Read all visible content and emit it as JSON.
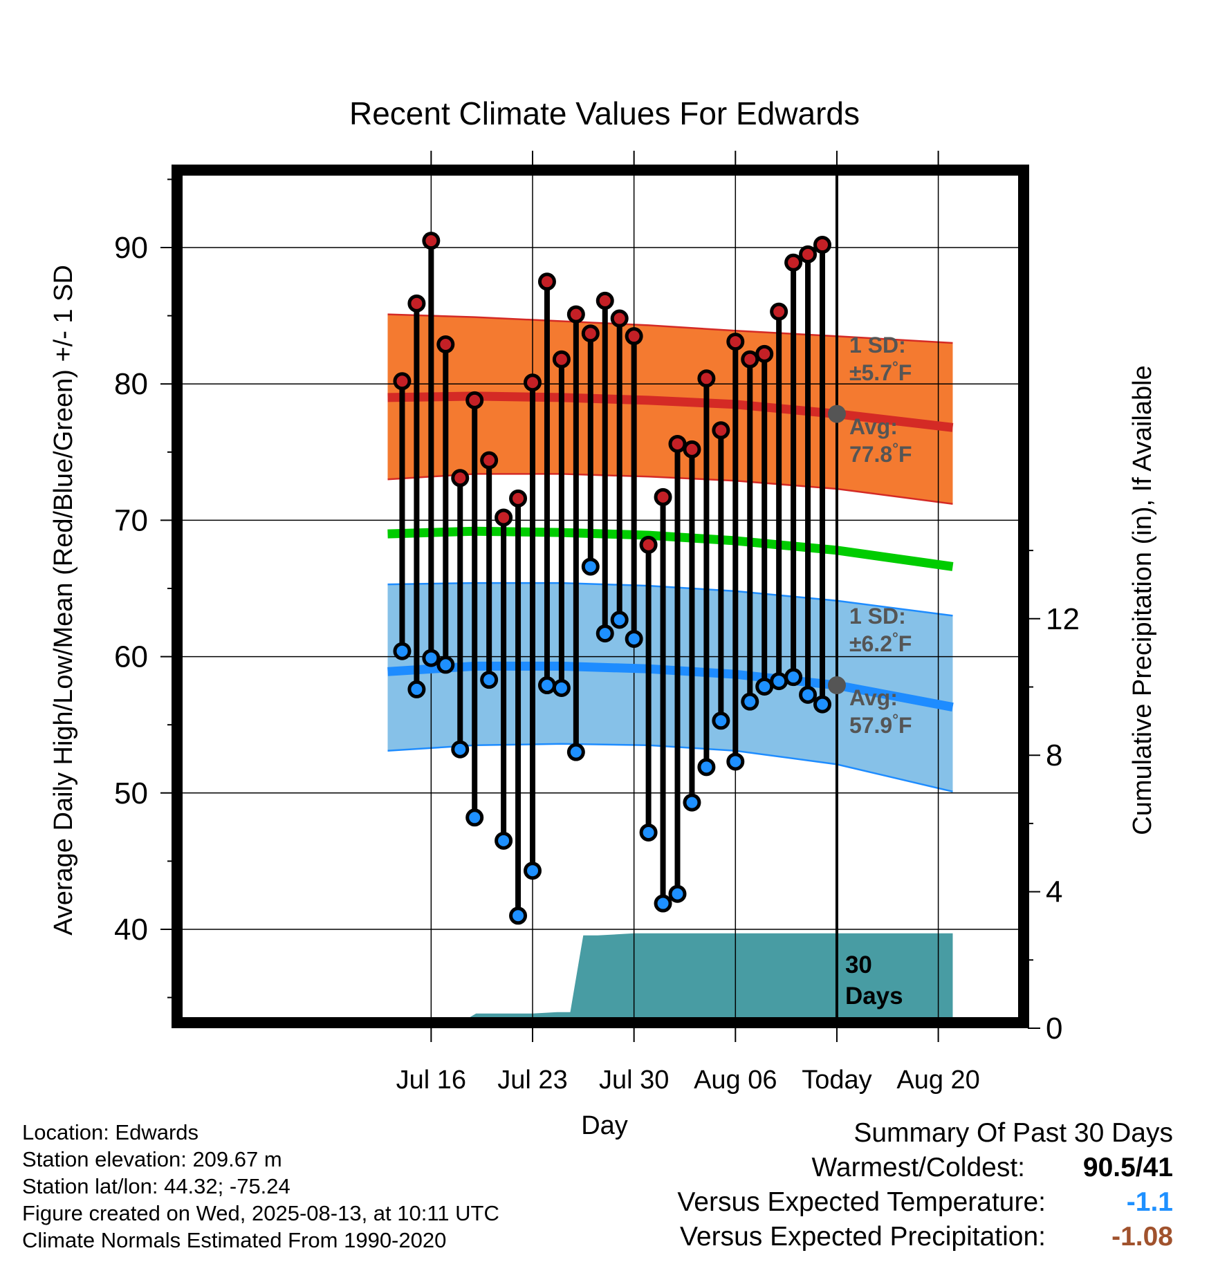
{
  "chart_data": {
    "type": "line",
    "title": "Recent Climate Values For Edwards",
    "xlabel": "Day",
    "ylabel_left": "Average Daily High/Low/Mean (Red/Blue/Green) +/- 1 SD",
    "ylabel_right": "Cumulative Precipitation (in), If Available",
    "ylim_left": [
      33.5,
      95
    ],
    "yticks_left": [
      40,
      50,
      60,
      70,
      80,
      90
    ],
    "ylim_right": [
      0,
      16
    ],
    "yticks_right": [
      0,
      4,
      8,
      12
    ],
    "x_range_days": [
      -30,
      9
    ],
    "x_ticks": [
      {
        "day": -27,
        "label": "Jul 16"
      },
      {
        "day": -20,
        "label": "Jul 23"
      },
      {
        "day": -13,
        "label": "Jul 30"
      },
      {
        "day": -6,
        "label": "Aug 06"
      },
      {
        "day": 1,
        "label": "Today"
      },
      {
        "day": 8,
        "label": "Aug 20"
      }
    ],
    "today_label": "Today",
    "days_since_label": [
      "30",
      "Days"
    ],
    "daily_high": [
      80.2,
      85.9,
      90.5,
      82.9,
      73.1,
      78.8,
      74.4,
      70.2,
      71.6,
      80.1,
      87.5,
      81.8,
      85.1,
      83.7,
      86.1,
      84.8,
      83.5,
      68.2,
      71.7,
      75.6,
      75.2,
      80.4,
      76.6,
      83.1,
      81.8,
      82.2,
      85.3,
      88.9,
      89.5,
      90.2
    ],
    "daily_low": [
      60.4,
      57.6,
      59.9,
      59.4,
      53.2,
      48.2,
      58.3,
      46.5,
      41.0,
      44.3,
      57.9,
      57.7,
      53.0,
      66.6,
      61.7,
      62.7,
      61.3,
      47.1,
      41.9,
      42.6,
      49.3,
      51.9,
      55.3,
      52.3,
      56.7,
      57.8,
      58.2,
      58.5,
      57.2,
      56.5
    ],
    "normal_high": {
      "x": [
        -30,
        -24,
        -18,
        -12,
        -6,
        1,
        9
      ],
      "values": [
        79.0,
        79.1,
        79.0,
        78.8,
        78.5,
        77.8,
        76.8
      ]
    },
    "normal_high_sd_upper": {
      "x": [
        -30,
        -24,
        -18,
        -12,
        -6,
        1,
        9
      ],
      "values": [
        85.1,
        84.9,
        84.6,
        84.3,
        83.9,
        83.5,
        83.0
      ]
    },
    "normal_high_sd_lower": {
      "x": [
        -30,
        -24,
        -18,
        -12,
        -6,
        1,
        9
      ],
      "values": [
        73.0,
        73.4,
        73.4,
        73.2,
        72.9,
        72.3,
        71.2
      ]
    },
    "normal_mean": {
      "x": [
        -30,
        -24,
        -18,
        -12,
        -6,
        1,
        9
      ],
      "values": [
        69.0,
        69.2,
        69.1,
        68.9,
        68.5,
        67.8,
        66.6
      ]
    },
    "normal_low": {
      "x": [
        -30,
        -24,
        -18,
        -12,
        -6,
        1,
        9
      ],
      "values": [
        58.9,
        59.3,
        59.3,
        59.1,
        58.7,
        57.9,
        56.3
      ]
    },
    "normal_low_sd_upper": {
      "x": [
        -30,
        -24,
        -18,
        -12,
        -6,
        1,
        9
      ],
      "values": [
        65.3,
        65.4,
        65.4,
        65.2,
        64.8,
        64.1,
        63.0
      ]
    },
    "normal_low_sd_lower": {
      "x": [
        -30,
        -24,
        -18,
        -12,
        -6,
        1,
        9
      ],
      "values": [
        53.1,
        53.5,
        53.6,
        53.5,
        53.1,
        52.1,
        50.1
      ]
    },
    "precip_cumulative": {
      "x": [
        -30,
        -26.3,
        -25.9,
        -24.5,
        -23.9,
        -20,
        -18.3,
        -17.4,
        -16.5,
        -15.5,
        -13,
        9
      ],
      "values": [
        0,
        0,
        0.28,
        0.28,
        0.43,
        0.43,
        0.47,
        0.47,
        2.72,
        2.72,
        2.78,
        2.78
      ]
    },
    "normals_annotations": {
      "high_sd": [
        "1 SD:",
        "±5.7",
        "°F"
      ],
      "high_avg": [
        "Avg:",
        "77.8",
        "°F"
      ],
      "low_sd": [
        "1 SD:",
        "±6.2",
        "°F"
      ],
      "low_avg": [
        "Avg:",
        "57.9",
        "°F"
      ]
    },
    "colors": {
      "high_band": "#f47a30",
      "high_line": "#d42a25",
      "mean_line": "#00cc00",
      "low_band": "#86c1e8",
      "low_line": "#1e8cff",
      "precip": "#489ca3",
      "high_marker": "#c42026",
      "low_marker": "#1e90ff"
    }
  },
  "station_info": [
    "Location: Edwards",
    "Station elevation: 209.67 m",
    "Station lat/lon: 44.32; -75.24",
    "Figure created on Wed, 2025-08-13, at 10:11 UTC",
    "Climate Normals Estimated From 1990-2020"
  ],
  "summary": {
    "title": "Summary Of Past 30 Days",
    "warmest_coldest_label": "Warmest/Coldest:",
    "warmest_coldest_value": "90.5/41",
    "temp_label": "Versus Expected Temperature:",
    "temp_value": "-1.1",
    "precip_label": "Versus Expected Precipitation:",
    "precip_value": "-1.08"
  }
}
